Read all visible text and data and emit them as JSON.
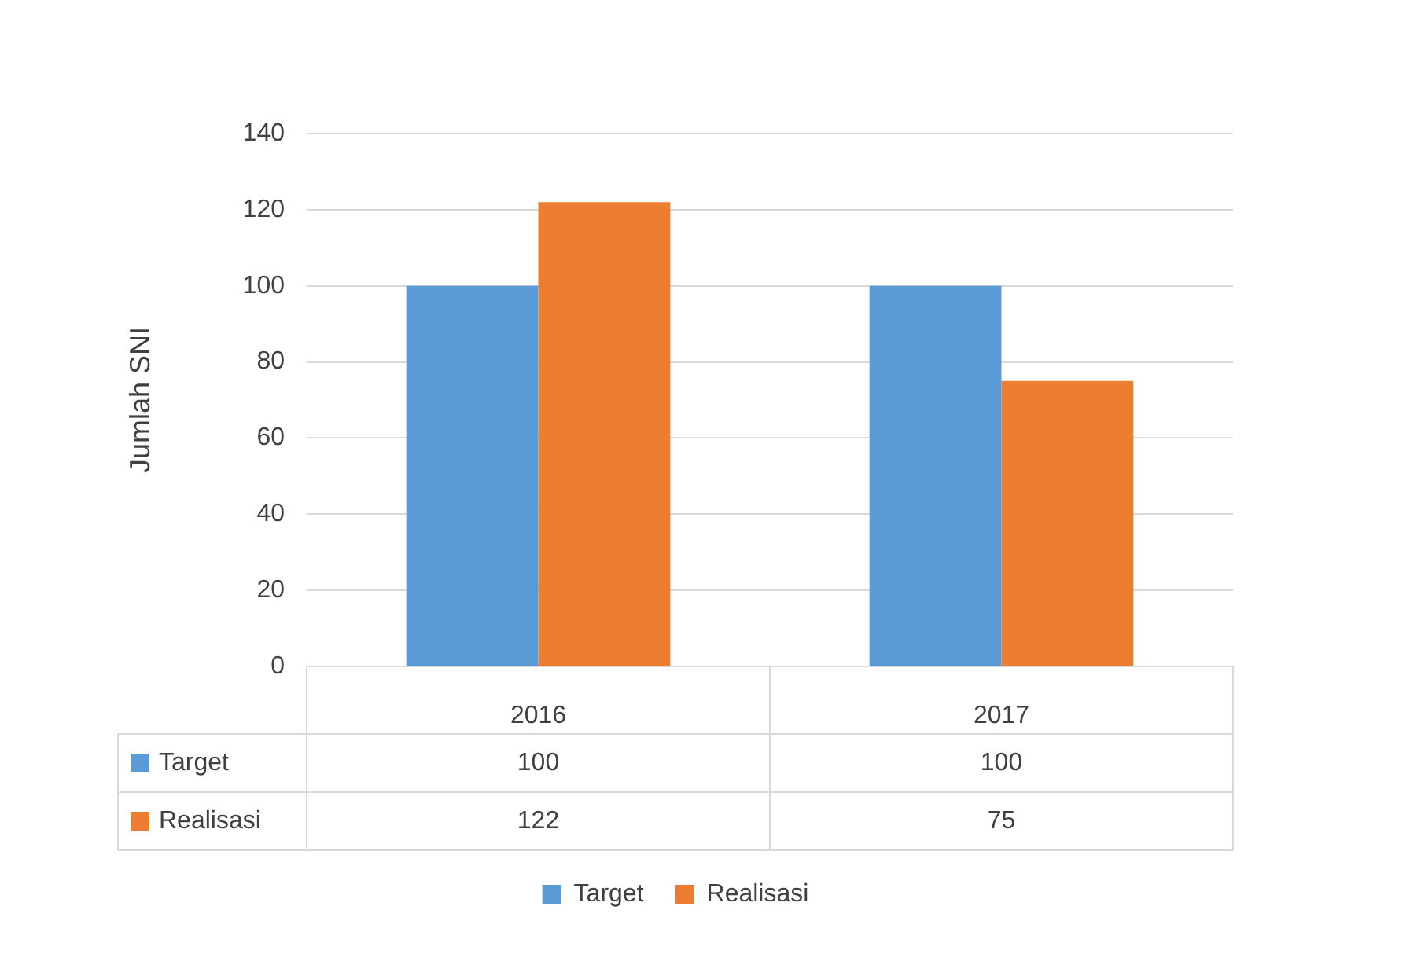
{
  "chart_data": {
    "type": "bar",
    "ylabel": "Jumlah SNI",
    "categories": [
      "2016",
      "2017"
    ],
    "series": [
      {
        "name": "Target",
        "color": "#5b9bd5",
        "values": [
          100,
          100
        ]
      },
      {
        "name": "Realisasi",
        "color": "#ed7d31",
        "values": [
          122,
          75
        ]
      }
    ],
    "ylim": [
      0,
      140
    ],
    "yticks": [
      0,
      20,
      40,
      60,
      80,
      100,
      120,
      140
    ],
    "grid": "y",
    "legend": "bottom",
    "data_labels": true
  }
}
